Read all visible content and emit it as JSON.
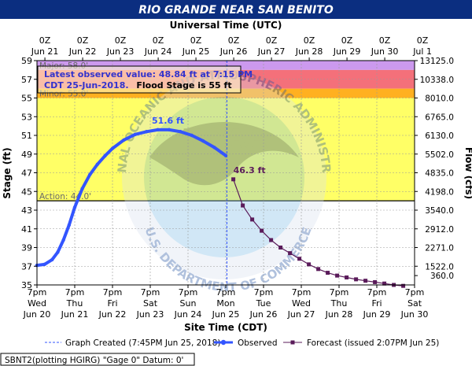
{
  "title": "RIO GRANDE NEAR SAN BENITO",
  "colors": {
    "title_bar": "#0b2e80",
    "observed": "#3355ff",
    "forecast": "#5a1b5a",
    "major": "#cc99ee",
    "moderate": "#f4707a",
    "minor": "#ffb020",
    "action": "#ffff66",
    "below": "#ffffff"
  },
  "chart_data": {
    "type": "line",
    "title": "RIO GRANDE NEAR SAN BENITO",
    "xlabel": "Site Time (CDT)",
    "top_xlabel": "Universal Time (UTC)",
    "ylabel": "Stage (ft)",
    "ylabel_right": "Flow (cfs)",
    "ylim": [
      35,
      59
    ],
    "xlim_days": [
      "Jun 20 7pm",
      "Jun 30 7pm"
    ],
    "yticks": [
      35,
      37,
      39,
      41,
      43,
      45,
      47,
      49,
      51,
      53,
      55,
      57,
      59
    ],
    "flow_ticks": [
      {
        "stage": 36,
        "label": "360.0"
      },
      {
        "stage": 37,
        "label": "1522.0"
      },
      {
        "stage": 39,
        "label": "2271.0"
      },
      {
        "stage": 41,
        "label": "2912.0"
      },
      {
        "stage": 43,
        "label": "3540.0"
      },
      {
        "stage": 45,
        "label": "4198.0"
      },
      {
        "stage": 47,
        "label": "4835.0"
      },
      {
        "stage": 49,
        "label": "5502.0"
      },
      {
        "stage": 51,
        "label": "6130.0"
      },
      {
        "stage": 53,
        "label": "6765.0"
      },
      {
        "stage": 55,
        "label": "8010.0"
      },
      {
        "stage": 57,
        "label": "10338.0"
      },
      {
        "stage": 59,
        "label": "13125.0"
      }
    ],
    "bottom_ticks": [
      {
        "l1": "7pm",
        "l2": "Wed",
        "l3": "Jun 20"
      },
      {
        "l1": "7pm",
        "l2": "Thu",
        "l3": "Jun 21"
      },
      {
        "l1": "7pm",
        "l2": "Fri",
        "l3": "Jun 22"
      },
      {
        "l1": "7pm",
        "l2": "Sat",
        "l3": "Jun 23"
      },
      {
        "l1": "7pm",
        "l2": "Sun",
        "l3": "Jun 24"
      },
      {
        "l1": "7pm",
        "l2": "Mon",
        "l3": "Jun 25"
      },
      {
        "l1": "7pm",
        "l2": "Tue",
        "l3": "Jun 26"
      },
      {
        "l1": "7pm",
        "l2": "Wed",
        "l3": "Jun 27"
      },
      {
        "l1": "7pm",
        "l2": "Thu",
        "l3": "Jun 28"
      },
      {
        "l1": "7pm",
        "l2": "Fri",
        "l3": "Jun 29"
      },
      {
        "l1": "7pm",
        "l2": "Sat",
        "l3": "Jun 30"
      }
    ],
    "top_ticks": [
      {
        "l1": "0Z",
        "l2": "Jun 21"
      },
      {
        "l1": "0Z",
        "l2": "Jun 22"
      },
      {
        "l1": "0Z",
        "l2": "Jun 23"
      },
      {
        "l1": "0Z",
        "l2": "Jun 24"
      },
      {
        "l1": "0Z",
        "l2": "Jun 25"
      },
      {
        "l1": "0Z",
        "l2": "Jun 26"
      },
      {
        "l1": "0Z",
        "l2": "Jun 27"
      },
      {
        "l1": "0Z",
        "l2": "Jun 28"
      },
      {
        "l1": "0Z",
        "l2": "Jun 29"
      },
      {
        "l1": "0Z",
        "l2": "Jun 30"
      },
      {
        "l1": "0Z",
        "l2": "Jul 1"
      }
    ],
    "flood_categories": [
      {
        "name": "major",
        "from": 58,
        "to": 59,
        "label": "Major: 58.0'",
        "color": "#cc99ee"
      },
      {
        "name": "moderate",
        "from": 56,
        "to": 58,
        "label": "",
        "color": "#f4707a"
      },
      {
        "name": "minor",
        "from": 55,
        "to": 56,
        "label": "Minor: 55.0'",
        "color": "#ffb020"
      },
      {
        "name": "action",
        "from": 44,
        "to": 55,
        "label": "Action: 44.0'",
        "color": "#ffff66"
      }
    ],
    "graph_created_day": 5.03,
    "series": [
      {
        "name": "Observed",
        "x": [
          0,
          0.2,
          0.4,
          0.55,
          0.7,
          0.85,
          1.0,
          1.2,
          1.4,
          1.6,
          1.8,
          2.0,
          2.3,
          2.6,
          2.9,
          3.2,
          3.5,
          3.8,
          4.1,
          4.4,
          4.7,
          5.0
        ],
        "values": [
          37.1,
          37.2,
          37.7,
          38.5,
          39.8,
          41.4,
          43.3,
          45.3,
          46.8,
          47.9,
          48.8,
          49.6,
          50.5,
          51.1,
          51.4,
          51.6,
          51.6,
          51.4,
          51.0,
          50.4,
          49.7,
          48.84
        ]
      },
      {
        "name": "Forecast (issued 2:07PM Jun 25)",
        "x": [
          5.2,
          5.45,
          5.7,
          5.95,
          6.2,
          6.45,
          6.7,
          6.95,
          7.2,
          7.45,
          7.7,
          7.95,
          8.2,
          8.45,
          8.7,
          8.95,
          9.2,
          9.45,
          9.7
        ],
        "values": [
          46.3,
          43.5,
          42.0,
          40.8,
          39.8,
          39.0,
          38.4,
          37.8,
          37.2,
          36.7,
          36.3,
          36.0,
          35.8,
          35.6,
          35.45,
          35.3,
          35.15,
          35.0,
          34.9
        ]
      }
    ],
    "annotations": [
      {
        "text": "51.6 ft",
        "x": 3.5,
        "y": 51.6,
        "color": "#3355ff"
      },
      {
        "text": "46.3 ft",
        "x": 5.2,
        "y": 46.3,
        "color": "#5a1b5a"
      }
    ]
  },
  "top_axis_title": "Universal Time (UTC)",
  "bottom_axis_title": "Site Time (CDT)",
  "left_axis_title": "Stage (ft)",
  "right_axis_title": "Flow (cfs)",
  "info_box": {
    "line1": "Latest observed value: 48.84 ft at 7:15 PM",
    "line2a": "CDT 25-Jun-2018.",
    "line2b": "Flood Stage is 55 ft"
  },
  "watermark": {
    "ring_text": "NATIONAL OCEANIC AND ATMOSPHERIC ADMINISTRATION",
    "ring_text_bottom": "U.S. DEPARTMENT OF COMMERCE",
    "center": "NOAA"
  },
  "legend": {
    "created": "Graph Created (7:45PM Jun 25, 2018)",
    "observed": "Observed",
    "forecast": "Forecast (issued 2:07PM Jun 25)"
  },
  "footer": "SBNT2(plotting HGIRG) \"Gage 0\" Datum:  0'"
}
